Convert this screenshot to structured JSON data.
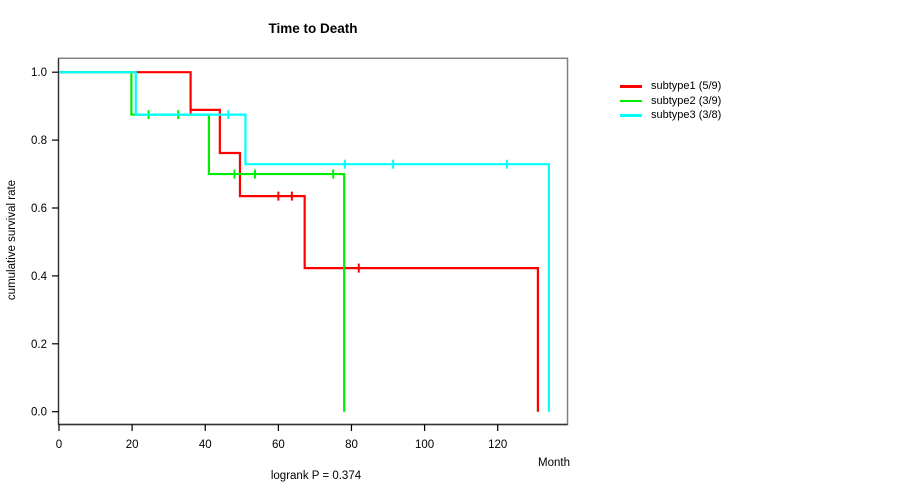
{
  "chart_data": {
    "type": "line",
    "variant": "kaplan-meier-step",
    "title": "Time to Death",
    "xlabel": "Month",
    "ylabel": "cumulative survival rate",
    "annotation": "logrank P = 0.374",
    "xlim": [
      0,
      139
    ],
    "ylim": [
      0.0,
      1.0
    ],
    "xticks": [
      0,
      20,
      40,
      60,
      80,
      100,
      120
    ],
    "yticks": [
      0.0,
      0.2,
      0.4,
      0.6,
      0.8,
      1.0
    ],
    "ytick_labels": [
      "0.0",
      "0.2",
      "0.4",
      "0.6",
      "0.8",
      "1.0"
    ],
    "grid": false,
    "legend_position": "right-outside",
    "series": [
      {
        "name": "subtype1 (5/9)",
        "color": "#ff0000",
        "steps": [
          {
            "t": 0,
            "s": 1.0
          },
          {
            "t": 36,
            "s": 0.889
          },
          {
            "t": 44,
            "s": 0.762
          },
          {
            "t": 49.5,
            "s": 0.635
          },
          {
            "t": 67.2,
            "s": 0.423
          },
          {
            "t": 131,
            "s": 0.0
          }
        ],
        "censors": [
          {
            "t": 36,
            "s": 0.889
          },
          {
            "t": 60,
            "s": 0.635
          },
          {
            "t": 63.7,
            "s": 0.635
          },
          {
            "t": 82,
            "s": 0.423
          }
        ]
      },
      {
        "name": "subtype2 (3/9)",
        "color": "#00ee00",
        "steps": [
          {
            "t": 0,
            "s": 1.0
          },
          {
            "t": 19.8,
            "s": 0.875
          },
          {
            "t": 41,
            "s": 0.7
          },
          {
            "t": 78,
            "s": 0.0
          }
        ],
        "censors": [
          {
            "t": 24.5,
            "s": 0.875
          },
          {
            "t": 32.6,
            "s": 0.875
          },
          {
            "t": 48,
            "s": 0.7
          },
          {
            "t": 53.6,
            "s": 0.7
          },
          {
            "t": 75,
            "s": 0.7
          }
        ]
      },
      {
        "name": "subtype3 (3/8)",
        "color": "#00ffff",
        "steps": [
          {
            "t": 0,
            "s": 1.0
          },
          {
            "t": 21,
            "s": 0.875
          },
          {
            "t": 51,
            "s": 0.729
          },
          {
            "t": 134,
            "s": 0.0
          }
        ],
        "censors": [
          {
            "t": 46.3,
            "s": 0.875
          },
          {
            "t": 78.2,
            "s": 0.729
          },
          {
            "t": 91.4,
            "s": 0.729
          },
          {
            "t": 122.5,
            "s": 0.729
          }
        ]
      }
    ]
  },
  "colors": {
    "frame": "#808080",
    "axis": "#333333",
    "tick": "#000000",
    "text": "#000000",
    "background": "#ffffff"
  }
}
